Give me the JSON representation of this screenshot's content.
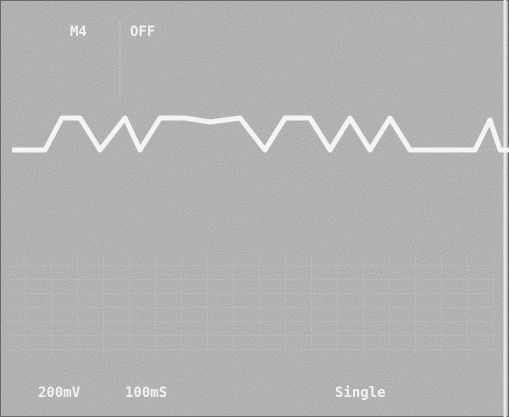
{
  "header": {
    "channel": "M4",
    "setting": "OFF"
  },
  "footer": {
    "volts_per_div": "200mV",
    "time_per_div": "100mS",
    "mode": "Single"
  }
}
